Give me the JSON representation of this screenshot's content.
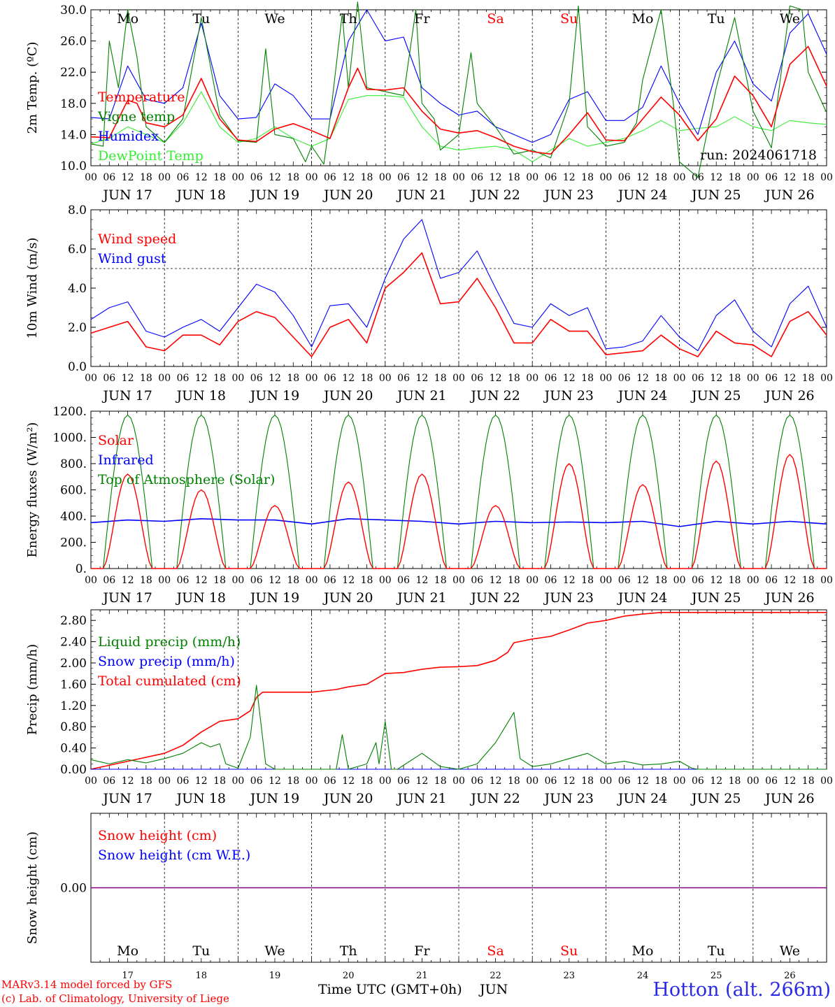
{
  "run_label": "run: 2024061718",
  "station_title": "Hotton (alt. 266m)",
  "x_axis_title": "Time UTC (GMT+0h)",
  "month_label": "JUN",
  "credits": [
    "MARv3.14 model forced by GFS",
    "(c) Lab. of Climatology, University of Liege"
  ],
  "days": [
    "17",
    "18",
    "19",
    "20",
    "21",
    "22",
    "23",
    "24",
    "25",
    "26"
  ],
  "day_dates": [
    "JUN 17",
    "JUN 18",
    "JUN 19",
    "JUN 20",
    "JUN 21",
    "JUN 22",
    "JUN 23",
    "JUN 24",
    "JUN 25",
    "JUN 26"
  ],
  "weekdays": [
    "Mo",
    "Tu",
    "We",
    "Th",
    "Fr",
    "Sa",
    "Su",
    "Mo",
    "Tu",
    "We"
  ],
  "weekend_flags": [
    false,
    false,
    false,
    false,
    false,
    true,
    true,
    false,
    false,
    false
  ],
  "hour_ticks": [
    "00",
    "06",
    "12",
    "18"
  ],
  "colors": {
    "red": "#ff0000",
    "green": "#008000",
    "blue": "#0000ff",
    "light_green": "#33ee33",
    "purple": "#800080",
    "weekend": "#ff0000"
  },
  "chart_data": [
    {
      "type": "line",
      "ylabel": "2m Temp. (ºC)",
      "ylim": [
        10,
        30
      ],
      "yticks": [
        "10.0",
        "14.0",
        "18.0",
        "22.0",
        "26.0",
        "30.0"
      ],
      "grid": "vertical dashed at day boundaries",
      "legend_position": "left",
      "x_unit": "hours since JUN 17 00 UTC",
      "series": [
        {
          "name": "Temperature",
          "color": "red",
          "x": [
            0,
            6,
            12,
            15,
            18,
            24,
            30,
            36,
            39,
            42,
            48,
            54,
            60,
            66,
            72,
            78,
            84,
            87,
            90,
            96,
            102,
            108,
            114,
            120,
            126,
            132,
            138,
            144,
            150,
            156,
            162,
            168,
            174,
            180,
            186,
            192,
            198,
            204,
            210,
            216,
            222,
            228,
            234,
            240
          ],
          "y": [
            13.7,
            13.6,
            18.4,
            18.0,
            15.5,
            15.0,
            16.5,
            21.2,
            18.5,
            16.0,
            13.3,
            13.1,
            14.7,
            15.4,
            14.5,
            13.5,
            20.0,
            22.5,
            19.8,
            19.7,
            20.0,
            17.0,
            14.7,
            14.2,
            14.5,
            13.6,
            12.5,
            11.8,
            11.5,
            14.0,
            16.8,
            13.3,
            13.2,
            16.0,
            18.8,
            16.5,
            13.2,
            16.0,
            21.5,
            19.0,
            15.0,
            23.0,
            25.3,
            20.2
          ]
        },
        {
          "name": "Vigne temp",
          "color": "green",
          "x": [
            0,
            4,
            6,
            9,
            12,
            15,
            18,
            24,
            30,
            36,
            42,
            48,
            54,
            57,
            60,
            66,
            70,
            72,
            76,
            78,
            82,
            84,
            87,
            90,
            96,
            102,
            106,
            108,
            112,
            114,
            120,
            124,
            126,
            132,
            138,
            144,
            150,
            156,
            159,
            162,
            168,
            174,
            178,
            180,
            186,
            190,
            192,
            198,
            204,
            210,
            213,
            216,
            222,
            228,
            232,
            234,
            240
          ],
          "y": [
            12.8,
            12.5,
            26.0,
            20.0,
            30.0,
            24.0,
            15.0,
            13.0,
            16.0,
            29.0,
            16.5,
            13.2,
            13.0,
            25.0,
            14.0,
            13.5,
            10.5,
            12.5,
            10.2,
            16.0,
            29.5,
            20.0,
            31.0,
            20.0,
            19.5,
            19.0,
            30.0,
            18.0,
            16.0,
            12.0,
            14.0,
            24.5,
            18.0,
            15.0,
            11.5,
            12.0,
            11.0,
            18.0,
            30.5,
            15.0,
            12.5,
            13.0,
            15.5,
            21.0,
            30.0,
            18.0,
            10.5,
            8.5,
            20.0,
            29.0,
            23.0,
            17.0,
            12.3,
            30.5,
            30.0,
            22.0,
            16.8
          ]
        },
        {
          "name": "Humidex",
          "color": "blue",
          "x": [
            0,
            6,
            12,
            18,
            24,
            30,
            36,
            42,
            48,
            54,
            60,
            66,
            72,
            78,
            84,
            90,
            96,
            102,
            108,
            114,
            120,
            126,
            132,
            138,
            144,
            150,
            156,
            162,
            168,
            174,
            180,
            186,
            192,
            198,
            204,
            210,
            216,
            222,
            228,
            234,
            240
          ],
          "y": [
            16.2,
            16.0,
            22.8,
            18.5,
            18.0,
            20.0,
            28.3,
            19.0,
            16.0,
            16.2,
            20.5,
            19.0,
            16.0,
            16.0,
            26.0,
            30.0,
            26.0,
            26.5,
            20.0,
            18.0,
            16.5,
            17.0,
            15.0,
            14.0,
            13.0,
            14.0,
            18.5,
            19.5,
            15.8,
            15.8,
            17.5,
            22.8,
            18.0,
            14.0,
            22.0,
            26.0,
            20.5,
            18.3,
            27.0,
            29.5,
            24.3
          ]
        },
        {
          "name": "DewPoint Temp",
          "color": "light_green",
          "x": [
            0,
            6,
            12,
            18,
            24,
            30,
            36,
            42,
            48,
            54,
            60,
            66,
            72,
            78,
            84,
            90,
            96,
            102,
            108,
            114,
            120,
            126,
            132,
            138,
            144,
            150,
            156,
            162,
            168,
            174,
            180,
            186,
            192,
            198,
            204,
            210,
            216,
            222,
            228,
            234,
            240
          ],
          "y": [
            12.8,
            13.5,
            15.0,
            14.0,
            13.0,
            15.5,
            19.5,
            15.0,
            13.0,
            13.5,
            15.0,
            13.5,
            12.5,
            13.5,
            18.5,
            19.0,
            19.0,
            18.8,
            15.0,
            12.5,
            12.0,
            12.3,
            12.5,
            12.0,
            10.5,
            12.0,
            13.5,
            12.5,
            13.0,
            13.5,
            14.5,
            15.8,
            14.5,
            14.8,
            15.0,
            16.3,
            15.0,
            14.5,
            15.8,
            15.5,
            15.3
          ]
        }
      ]
    },
    {
      "type": "line",
      "ylabel": "10m Wind (m/s)",
      "ylim": [
        0,
        8
      ],
      "yticks": [
        "0.0",
        "2.0",
        "4.0",
        "6.0",
        "8.0"
      ],
      "reference_line": 5.0,
      "x_unit": "hours since JUN 17 00 UTC",
      "series": [
        {
          "name": "Wind speed",
          "color": "red",
          "x": [
            0,
            6,
            12,
            18,
            24,
            30,
            36,
            42,
            48,
            54,
            60,
            66,
            72,
            78,
            84,
            90,
            96,
            102,
            108,
            114,
            120,
            126,
            132,
            138,
            144,
            150,
            156,
            162,
            168,
            174,
            180,
            186,
            192,
            198,
            204,
            210,
            216,
            222,
            228,
            234,
            240
          ],
          "y": [
            1.7,
            2.0,
            2.3,
            1.0,
            0.8,
            1.6,
            1.6,
            1.1,
            2.3,
            2.8,
            2.5,
            1.5,
            0.5,
            2.0,
            2.4,
            1.2,
            4.0,
            4.8,
            5.8,
            3.2,
            3.3,
            4.5,
            3.0,
            1.2,
            1.2,
            2.4,
            1.8,
            1.8,
            0.6,
            0.7,
            0.8,
            1.6,
            0.9,
            0.5,
            1.8,
            1.2,
            1.1,
            0.5,
            2.3,
            2.8,
            1.6
          ]
        },
        {
          "name": "Wind gust",
          "color": "blue",
          "x": [
            0,
            6,
            12,
            18,
            24,
            30,
            36,
            42,
            48,
            54,
            60,
            66,
            72,
            78,
            84,
            90,
            96,
            102,
            108,
            114,
            120,
            126,
            132,
            138,
            144,
            150,
            156,
            162,
            168,
            174,
            180,
            186,
            192,
            198,
            204,
            210,
            216,
            222,
            228,
            234,
            240
          ],
          "y": [
            2.4,
            3.0,
            3.3,
            1.8,
            1.5,
            2.0,
            2.4,
            1.8,
            3.0,
            4.2,
            3.8,
            2.6,
            1.0,
            3.1,
            3.2,
            2.0,
            4.5,
            6.5,
            7.5,
            4.5,
            4.8,
            5.9,
            4.0,
            2.2,
            2.0,
            3.2,
            2.6,
            3.0,
            0.9,
            1.0,
            1.3,
            2.6,
            1.5,
            0.8,
            2.6,
            3.4,
            1.8,
            1.0,
            3.2,
            4.1,
            2.0
          ]
        }
      ]
    },
    {
      "type": "line",
      "ylabel": "Energy fluxes (W/m²)",
      "ylim": [
        0,
        1200
      ],
      "yticks": [
        "0.",
        "200.",
        "400.",
        "600.",
        "800.",
        "1000.",
        "1200."
      ],
      "x_unit": "hours since JUN 17 00 UTC",
      "solar_peaks": [
        720,
        600,
        480,
        660,
        720,
        480,
        800,
        640,
        820,
        870
      ],
      "series": [
        {
          "name": "Solar",
          "color": "red",
          "shape": "daily bells, peaks per solar_peaks"
        },
        {
          "name": "Infrared",
          "color": "blue",
          "x": [
            0,
            12,
            24,
            36,
            48,
            60,
            72,
            84,
            96,
            108,
            120,
            132,
            144,
            156,
            168,
            180,
            192,
            204,
            216,
            228,
            240
          ],
          "y": [
            350,
            370,
            360,
            380,
            370,
            370,
            340,
            380,
            370,
            360,
            340,
            360,
            350,
            355,
            350,
            360,
            320,
            360,
            340,
            360,
            340
          ]
        },
        {
          "name": "Top of Atmosphere (Solar)",
          "color": "green",
          "shape": "daily bells, peak 1170"
        }
      ]
    },
    {
      "type": "line",
      "ylabel": "Precip (mm/h)",
      "ylim": [
        0,
        3
      ],
      "yticks": [
        "0.00",
        "0.40",
        "0.80",
        "1.20",
        "1.60",
        "2.00",
        "2.40",
        "2.80"
      ],
      "x_unit": "hours since JUN 17 00 UTC",
      "series": [
        {
          "name": "Liquid precip (mm/h)",
          "color": "green",
          "x": [
            0,
            6,
            12,
            18,
            24,
            30,
            36,
            39,
            42,
            44,
            48,
            52,
            54,
            57,
            60,
            72,
            80,
            82,
            84,
            90,
            93,
            94,
            96,
            98,
            100,
            108,
            114,
            120,
            126,
            132,
            138,
            140,
            144,
            150,
            156,
            162,
            168,
            174,
            180,
            186,
            192,
            196,
            198,
            240
          ],
          "y": [
            0.18,
            0.1,
            0.18,
            0.12,
            0.2,
            0.3,
            0.5,
            0.42,
            0.48,
            0.1,
            0.02,
            0.6,
            1.58,
            0.1,
            0.0,
            0.0,
            0.0,
            0.65,
            0.0,
            0.1,
            0.5,
            0.1,
            0.9,
            0.0,
            0.0,
            0.3,
            0.05,
            0.0,
            0.1,
            0.5,
            1.07,
            0.2,
            0.05,
            0.1,
            0.2,
            0.3,
            0.1,
            0.15,
            0.08,
            0.1,
            0.15,
            0.02,
            0.0,
            0.0
          ]
        },
        {
          "name": "Snow precip (mm/h)",
          "color": "blue",
          "x": [
            0,
            240
          ],
          "y": [
            0,
            0
          ]
        },
        {
          "name": "Total cumulated (cm)",
          "color": "red",
          "x": [
            0,
            12,
            24,
            30,
            36,
            42,
            48,
            52,
            54,
            56,
            60,
            72,
            80,
            84,
            90,
            96,
            102,
            108,
            114,
            120,
            126,
            132,
            136,
            138,
            144,
            150,
            156,
            162,
            168,
            174,
            180,
            186,
            240
          ],
          "y": [
            0.0,
            0.15,
            0.3,
            0.45,
            0.7,
            0.9,
            0.95,
            1.1,
            1.35,
            1.45,
            1.45,
            1.45,
            1.5,
            1.55,
            1.6,
            1.8,
            1.82,
            1.88,
            1.92,
            1.93,
            1.95,
            2.05,
            2.2,
            2.38,
            2.45,
            2.5,
            2.62,
            2.75,
            2.8,
            2.88,
            2.92,
            2.95,
            2.95
          ]
        }
      ]
    },
    {
      "type": "line",
      "ylabel": "Snow height (cm)",
      "ylim": [
        -1,
        1
      ],
      "yticks": [
        "0.00"
      ],
      "x_unit": "hours since JUN 17 00 UTC",
      "series": [
        {
          "name": "Snow height (cm)",
          "color": "red",
          "x": [
            0,
            240
          ],
          "y": [
            0,
            0
          ]
        },
        {
          "name": "Snow height (cm W.E.)",
          "color": "blue",
          "x": [
            0,
            240
          ],
          "y": [
            0,
            0
          ]
        }
      ]
    }
  ]
}
